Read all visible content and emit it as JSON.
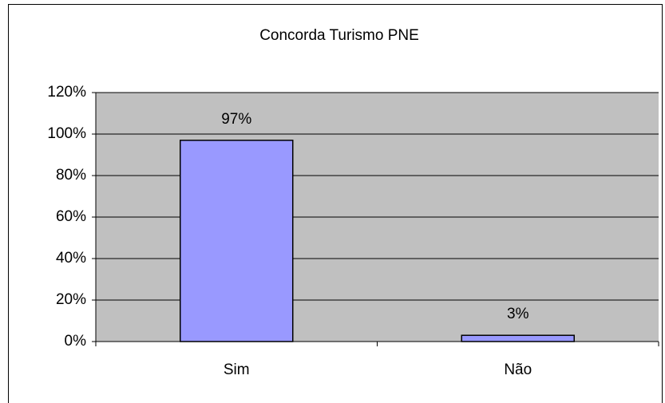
{
  "chart_data": {
    "type": "bar",
    "title": "Concorda Turismo PNE",
    "categories": [
      "Sim",
      "Não"
    ],
    "values": [
      97,
      3
    ],
    "value_labels": [
      "97%",
      "3%"
    ],
    "color": "#9999ff",
    "ylim": [
      0,
      120
    ],
    "yticks": [
      {
        "value": 0,
        "label": "0%"
      },
      {
        "value": 20,
        "label": "20%"
      },
      {
        "value": 40,
        "label": "40%"
      },
      {
        "value": 60,
        "label": "60%"
      },
      {
        "value": 80,
        "label": "80%"
      },
      {
        "value": 100,
        "label": "100%"
      },
      {
        "value": 120,
        "label": "120%"
      }
    ],
    "grid": true
  }
}
